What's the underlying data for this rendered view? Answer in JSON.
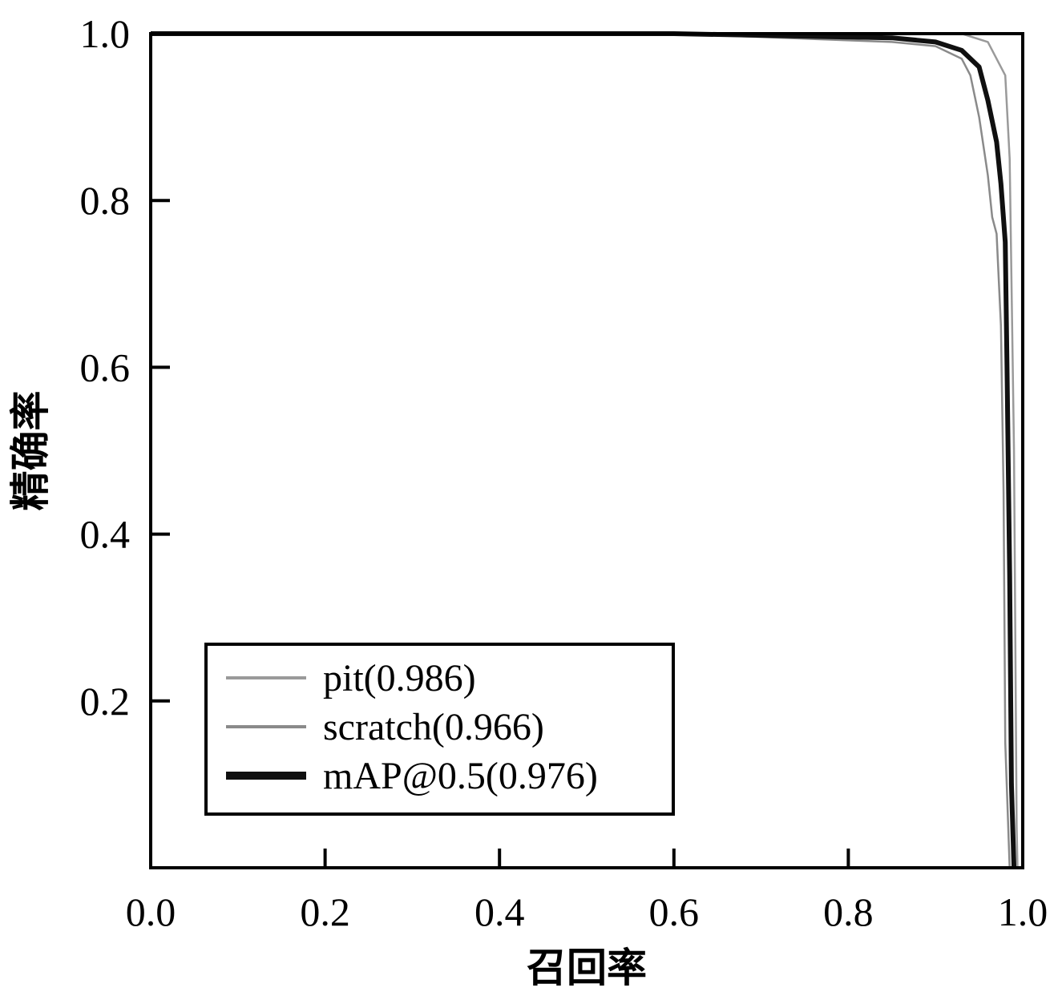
{
  "chart_data": {
    "type": "line",
    "title": "",
    "xlabel": "召回率",
    "ylabel": "精确率",
    "xlim": [
      0,
      1
    ],
    "ylim": [
      0,
      1
    ],
    "xticks": [
      "0.0",
      "0.2",
      "0.4",
      "0.6",
      "0.8",
      "1.0"
    ],
    "yticks": [
      "0.2",
      "0.4",
      "0.6",
      "0.8",
      "1.0"
    ],
    "grid": false,
    "legend_position": "bottom-left",
    "series": [
      {
        "name": "pit(0.986)",
        "color": "#9a9a9a",
        "x": [
          0.0,
          0.5,
          0.9,
          0.93,
          0.96,
          0.98,
          0.985,
          0.99,
          0.992,
          0.993,
          0.994
        ],
        "y": [
          1.0,
          1.0,
          1.0,
          1.0,
          0.99,
          0.95,
          0.85,
          0.5,
          0.2,
          0.05,
          0.0
        ]
      },
      {
        "name": "scratch(0.966)",
        "color": "#8a8a8a",
        "x": [
          0.0,
          0.6,
          0.85,
          0.9,
          0.93,
          0.94,
          0.95,
          0.96,
          0.965,
          0.97,
          0.975,
          0.978,
          0.98,
          0.985
        ],
        "y": [
          1.0,
          1.0,
          0.99,
          0.985,
          0.97,
          0.95,
          0.9,
          0.83,
          0.78,
          0.76,
          0.65,
          0.45,
          0.15,
          0.0
        ]
      },
      {
        "name": "mAP@0.5(0.976)",
        "color": "#101010",
        "x": [
          0.0,
          0.6,
          0.85,
          0.9,
          0.93,
          0.95,
          0.96,
          0.97,
          0.975,
          0.98,
          0.982,
          0.985,
          0.987,
          0.99
        ],
        "y": [
          1.0,
          1.0,
          0.995,
          0.99,
          0.98,
          0.96,
          0.92,
          0.87,
          0.82,
          0.75,
          0.6,
          0.35,
          0.1,
          0.0
        ]
      }
    ]
  }
}
